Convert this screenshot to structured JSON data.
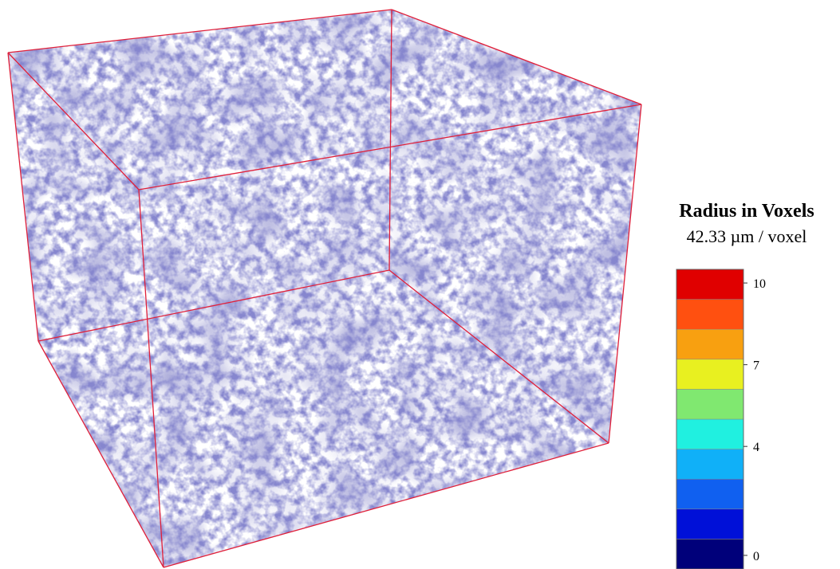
{
  "legend": {
    "title": "Radius in Voxels",
    "unit": "42.33 µm / voxel",
    "range": [
      -0.5,
      10.5
    ],
    "ticks": [
      0,
      4,
      7,
      10
    ],
    "colors": [
      "#00007a",
      "#0010d8",
      "#1060f0",
      "#10b0f8",
      "#20f0e0",
      "#80e870",
      "#e8f020",
      "#f8a010",
      "#ff5010",
      "#e00000"
    ]
  }
}
